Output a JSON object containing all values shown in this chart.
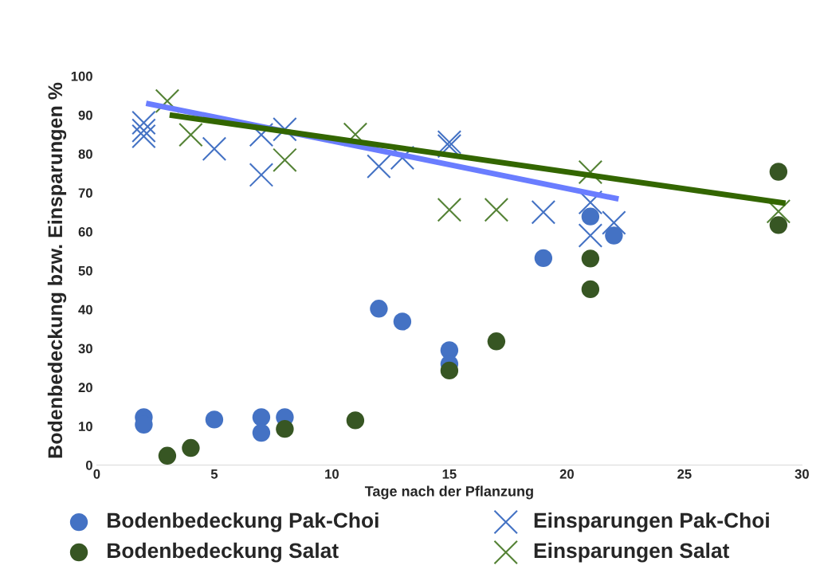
{
  "chart_data": {
    "type": "scatter",
    "xlabel": "Tage nach der Pflanzung",
    "ylabel": "Bodenbedeckung bzw. Einsparungen %",
    "xlim": [
      0,
      30
    ],
    "xticks": [
      0,
      5,
      10,
      15,
      20,
      25,
      30
    ],
    "ylim": [
      0,
      100
    ],
    "yticks": [
      0,
      10,
      20,
      30,
      40,
      50,
      60,
      70,
      80,
      90,
      100
    ],
    "grid": false,
    "legend": "bottom",
    "series": [
      {
        "name": "Bodenbedeckung Pak-Choi",
        "color": "#4472c4",
        "marker": "circle",
        "x": [
          2,
          2,
          5,
          7,
          7,
          8,
          12,
          13,
          15,
          15,
          19,
          21,
          22
        ],
        "values": [
          12.3,
          10.4,
          11.7,
          12.3,
          8.3,
          12.3,
          40.2,
          36.9,
          29.5,
          26,
          53.2,
          63.9,
          59
        ]
      },
      {
        "name": "Bodenbedeckung Salat",
        "color": "#375623",
        "marker": "circle",
        "x": [
          3,
          4,
          8,
          11,
          15,
          17,
          21,
          21,
          29,
          29
        ],
        "values": [
          2.4,
          4.4,
          9.3,
          11.5,
          24.3,
          31.8,
          53.1,
          45.2,
          75.4,
          61.7
        ]
      },
      {
        "name": "Einsparungen Pak-Choi",
        "color": "#4472c4",
        "marker": "cross",
        "x": [
          2,
          2,
          2,
          5,
          7,
          7,
          8,
          12,
          13,
          15,
          15,
          19,
          21,
          21,
          22
        ],
        "values": [
          88,
          86,
          84.5,
          81.3,
          84.9,
          74.6,
          86.3,
          76.8,
          79,
          83,
          82,
          65,
          67.5,
          59,
          62.3
        ]
      },
      {
        "name": "Einsparungen Salat",
        "color": "#548235",
        "marker": "cross",
        "x": [
          3,
          4,
          8,
          11,
          15,
          17,
          21,
          29
        ],
        "values": [
          93.6,
          84.9,
          78.4,
          85,
          65.6,
          65.6,
          75.3,
          65.2
        ]
      },
      {
        "type": "line",
        "color": "#6a7dff",
        "x": [
          2.1,
          22.2
        ],
        "values": [
          93,
          68.4
        ]
      },
      {
        "type": "line",
        "color": "#336600",
        "x": [
          3.1,
          29.3
        ],
        "values": [
          90,
          67.3
        ]
      }
    ]
  }
}
